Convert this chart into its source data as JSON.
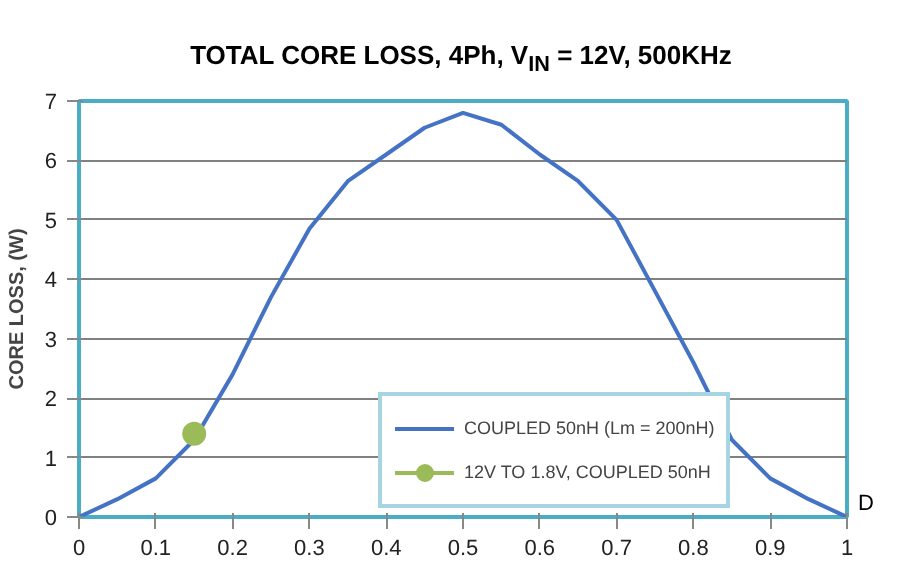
{
  "chart_data": {
    "type": "line",
    "title": "TOTAL CORE LOSS, 4Ph, V$_{IN}$ = 12V, 500KHz",
    "xlabel": "D",
    "ylabel": "CORE LOSS, (W)",
    "xlim": [
      0,
      1
    ],
    "xticks": [
      0,
      0.1,
      0.2,
      0.3,
      0.4,
      0.5,
      0.6,
      0.7,
      0.8,
      0.9,
      1
    ],
    "ylim": [
      0,
      7
    ],
    "yticks": [
      0,
      1,
      2,
      3,
      4,
      5,
      6,
      7
    ],
    "grid": "y",
    "legend": "bottom",
    "series": [
      {
        "name": "COUPLED 50nH (Lm = 200nH)",
        "color": "#4472c4",
        "marker": "none",
        "x": [
          0,
          0.05,
          0.1,
          0.15,
          0.2,
          0.25,
          0.3,
          0.35,
          0.4,
          0.45,
          0.5,
          0.55,
          0.6,
          0.65,
          0.7,
          0.75,
          0.8,
          0.85,
          0.9,
          0.95,
          1
        ],
        "values": [
          0,
          0.3,
          0.65,
          1.3,
          2.4,
          3.7,
          4.85,
          5.65,
          6.1,
          6.55,
          6.8,
          6.6,
          6.1,
          5.65,
          5.0,
          3.8,
          2.6,
          1.3,
          0.65,
          0.3,
          0
        ]
      },
      {
        "name": "12V TO 1.8V, COUPLED 50nH",
        "color": "#9bbb59",
        "marker": "circle",
        "x": [
          0.15
        ],
        "values": [
          1.4
        ]
      }
    ]
  }
}
